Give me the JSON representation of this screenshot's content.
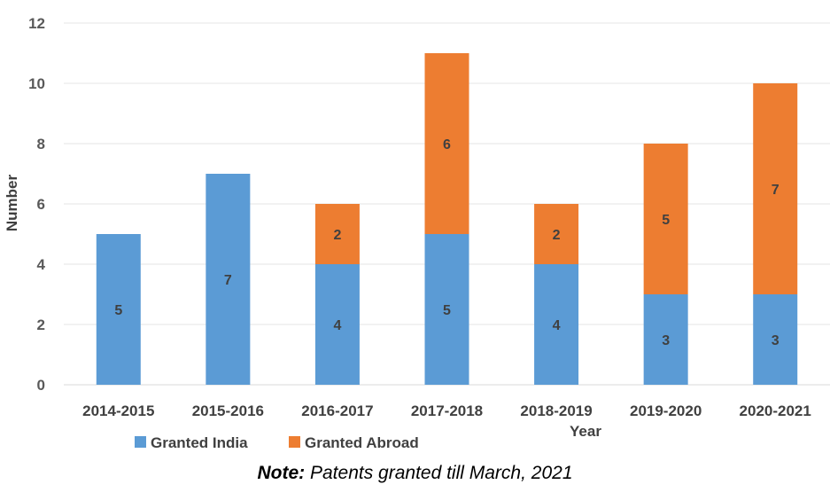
{
  "chart_data": {
    "type": "bar",
    "stacked": true,
    "categories": [
      "2014-2015",
      "2015-2016",
      "2016-2017",
      "2017-2018",
      "2018-2019",
      "2019-2020",
      "2020-2021"
    ],
    "series": [
      {
        "name": "Granted India",
        "values": [
          5,
          7,
          4,
          5,
          4,
          3,
          3
        ],
        "color": "#5B9BD5"
      },
      {
        "name": "Granted Abroad",
        "values": [
          0,
          0,
          2,
          6,
          2,
          5,
          7
        ],
        "color": "#ED7D31"
      }
    ],
    "xlabel": "Year",
    "ylabel": "Number",
    "ylim": [
      0,
      12
    ],
    "yticks": [
      0,
      2,
      4,
      6,
      8,
      10,
      12
    ],
    "grid": true,
    "legend_position": "bottom-left"
  },
  "note": {
    "bold": "Note:",
    "text": " Patents granted till March, 2021"
  }
}
